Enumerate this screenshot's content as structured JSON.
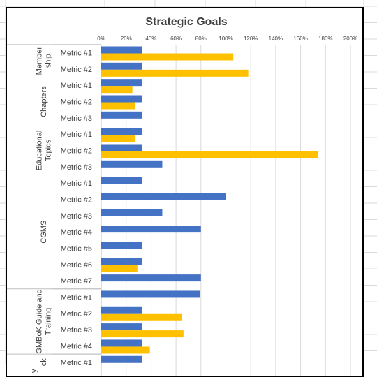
{
  "chart_data": {
    "type": "bar",
    "orientation": "horizontal",
    "title": "Strategic Goals",
    "xlabel": "",
    "ylabel": "",
    "xlim": [
      0,
      200
    ],
    "x_ticks": [
      "0%",
      "20%",
      "40%",
      "60%",
      "80%",
      "100%",
      "120%",
      "140%",
      "160%",
      "180%",
      "200%"
    ],
    "grid": true,
    "legend": "none",
    "colors": {
      "series_1": "#4472C4",
      "series_2": "#FFC000"
    },
    "groups": [
      {
        "label": "Member ship",
        "lines": [
          "Member",
          "ship"
        ],
        "rows": [
          {
            "label": "Metric #1",
            "values": [
              33,
              106
            ]
          },
          {
            "label": "Metric #2",
            "values": [
              33,
              118
            ]
          }
        ]
      },
      {
        "label": "Chapters",
        "lines": [
          "Chapters"
        ],
        "rows": [
          {
            "label": "Metric #1",
            "values": [
              33,
              25
            ]
          },
          {
            "label": "Metric #2",
            "values": [
              33,
              27
            ]
          },
          {
            "label": "Metric #3",
            "values": [
              33,
              null
            ]
          }
        ]
      },
      {
        "label": "Educational Topics",
        "lines": [
          "Educational",
          "Topics"
        ],
        "rows": [
          {
            "label": "Metric #1",
            "values": [
              33,
              27
            ]
          },
          {
            "label": "Metric #2",
            "values": [
              33,
              174
            ]
          },
          {
            "label": "Metric #3",
            "values": [
              49,
              null
            ]
          }
        ]
      },
      {
        "label": "CGMS",
        "lines": [
          "CGMS"
        ],
        "rows": [
          {
            "label": "Metric #1",
            "values": [
              33,
              null
            ]
          },
          {
            "label": "Metric #2",
            "values": [
              100,
              null
            ]
          },
          {
            "label": "Metric #3",
            "values": [
              49,
              null
            ]
          },
          {
            "label": "Metric #4",
            "values": [
              80,
              null
            ]
          },
          {
            "label": "Metric #5",
            "values": [
              33,
              null
            ]
          },
          {
            "label": "Metric #6",
            "values": [
              33,
              29
            ]
          },
          {
            "label": "Metric #7",
            "values": [
              80,
              null
            ]
          }
        ]
      },
      {
        "label": "GMBoK Guide and Training",
        "lines": [
          "GMBoK Guide and",
          "Training"
        ],
        "lead": "y",
        "rows": [
          {
            "label": "Metric #1",
            "values": [
              79,
              null
            ]
          },
          {
            "label": "Metric #2",
            "values": [
              33,
              65
            ]
          },
          {
            "label": "Metric #3",
            "values": [
              33,
              66
            ]
          },
          {
            "label": "Metric #4",
            "values": [
              33,
              39
            ]
          }
        ]
      },
      {
        "label": "ck",
        "lines": [
          "ck"
        ],
        "rows": [
          {
            "label": "Metric #1",
            "values": [
              33,
              null
            ]
          }
        ]
      }
    ]
  }
}
